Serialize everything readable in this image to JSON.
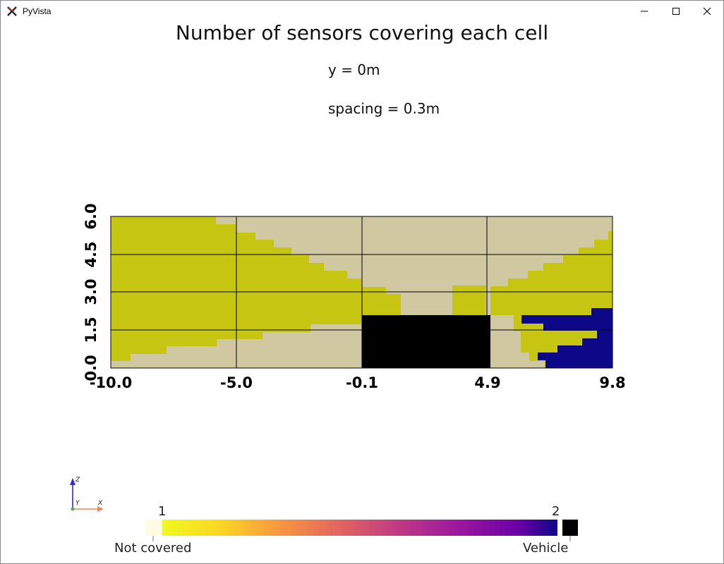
{
  "window": {
    "title": "PyVista"
  },
  "plot": {
    "title": "Number of sensors covering each cell",
    "subtitle_y": "y = 0m",
    "subtitle_spacing": "spacing = 0.3m",
    "x_ticks": [
      "-10.0",
      "-5.0",
      "-0.1",
      "4.9",
      "9.8"
    ],
    "y_ticks": [
      "0.0",
      "1.5",
      "3.0",
      "4.5",
      "6.0"
    ]
  },
  "axes_widget": {
    "z_label": "Z",
    "y_label": "Y",
    "x_label": "X"
  },
  "colorbar": {
    "min_label": "1",
    "max_label": "2",
    "not_covered_label": "Not covered",
    "vehicle_label": "Vehicle"
  },
  "colors": {
    "covered_one": "#c5c512",
    "not_covered": "#cfc8a0",
    "covered_two": "#0d0887",
    "vehicle": "#000000"
  }
}
